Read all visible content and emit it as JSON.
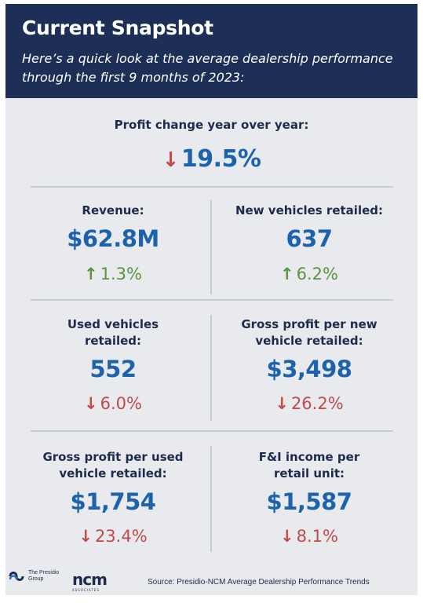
{
  "header": {
    "title": "Current Snapshot",
    "subtitle": "Here’s a quick look at the average dealership performance through the first 9 months of 2023:"
  },
  "top_metric": {
    "label": "Profit change year over year:",
    "value": "19.5%",
    "direction": "down"
  },
  "metrics": [
    {
      "label": "Revenue:",
      "value": "$62.8M",
      "change": "1.3%",
      "direction": "up"
    },
    {
      "label": "New vehicles retailed:",
      "value": "637",
      "change": "6.2%",
      "direction": "up"
    },
    {
      "label": "Used vehicles retailed:",
      "value": "552",
      "change": "6.0%",
      "direction": "down"
    },
    {
      "label": "Gross profit per new vehicle retailed:",
      "value": "$3,498",
      "change": "26.2%",
      "direction": "down"
    },
    {
      "label": "Gross profit per used vehicle retailed:",
      "value": "$1,754",
      "change": "23.4%",
      "direction": "down"
    },
    {
      "label": "F&I income per retail unit:",
      "value": "$1,587",
      "change": "8.1%",
      "direction": "down"
    }
  ],
  "footer": {
    "source": "Source: Presidio-NCM Average Dealership Performance Trends",
    "logo_presidio": "The Presidio Group",
    "logo_ncm": "ncm",
    "logo_ncm_sub": "ASSOCIATES"
  },
  "colors": {
    "header_bg": "#1d2f57",
    "card_bg": "#e8eaee",
    "value_blue": "#1c62ad",
    "up_green": "#5a9440",
    "down_red": "#c24a4a"
  }
}
